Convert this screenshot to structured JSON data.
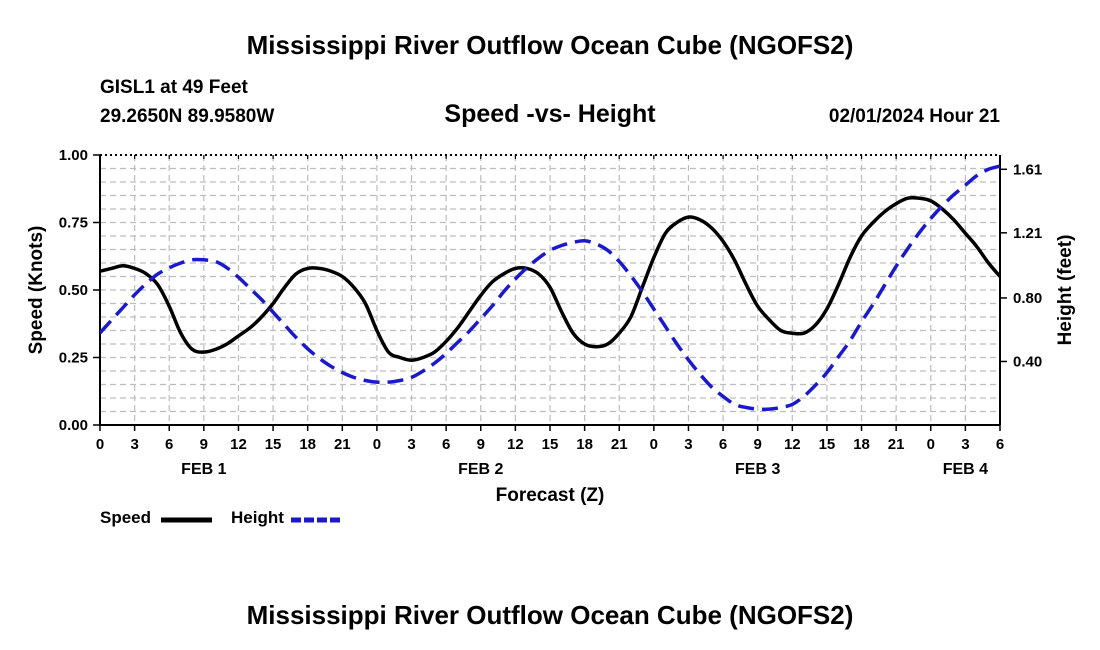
{
  "header": {
    "title": "Mississippi River Outflow Ocean Cube (NGOFS2)",
    "station": "GISL1 at 49 Feet",
    "coords": "29.2650N  89.9580W",
    "subtitle": "Speed -vs- Height",
    "datetime": "02/01/2024 Hour 21",
    "footer_title": "Mississippi River Outflow Ocean Cube (NGOFS2)"
  },
  "colors": {
    "speed": "#000000",
    "height": "#1a1acc",
    "grid": "#bdbdbd"
  },
  "chart_data": {
    "type": "line",
    "xlabel": "Forecast (Z)",
    "ylabel": "Speed (Knots)",
    "y2label": "Height (feet)",
    "x_hours_range": [
      0,
      78
    ],
    "xtick_labels": [
      "0",
      "3",
      "6",
      "9",
      "12",
      "15",
      "18",
      "21",
      "0",
      "3",
      "6",
      "9",
      "12",
      "15",
      "18",
      "21",
      "0",
      "3",
      "6",
      "9",
      "12",
      "15",
      "18",
      "21",
      "0",
      "3",
      "6"
    ],
    "date_labels": [
      {
        "label": "FEB 1",
        "hour": 9
      },
      {
        "label": "FEB 2",
        "hour": 33
      },
      {
        "label": "FEB 3",
        "hour": 57
      },
      {
        "label": "FEB 4",
        "hour": 75
      }
    ],
    "ylim": [
      0,
      1.0
    ],
    "yticks": [
      "0.00",
      "0.25",
      "0.50",
      "0.75",
      "1.00"
    ],
    "y2lim": [
      0.0,
      1.7
    ],
    "y2ticks": [
      "0.40",
      "0.80",
      "1.21",
      "1.61"
    ],
    "series": [
      {
        "name": "Speed",
        "axis": "left",
        "x": [
          0,
          1,
          2,
          3,
          4,
          5,
          6,
          7,
          8,
          9,
          10,
          11,
          12,
          13,
          14,
          15,
          16,
          17,
          18,
          19,
          20,
          21,
          22,
          23,
          24,
          25,
          26,
          27,
          28,
          29,
          30,
          31,
          32,
          33,
          34,
          35,
          36,
          37,
          38,
          39,
          40,
          41,
          42,
          43,
          44,
          45,
          46,
          47,
          48,
          49,
          50,
          51,
          52,
          53,
          54,
          55,
          56,
          57,
          58,
          59,
          60,
          61,
          62,
          63,
          64,
          65,
          66,
          67,
          68,
          69,
          70,
          71,
          72,
          73,
          74,
          75,
          76,
          77,
          78
        ],
        "values": [
          0.57,
          0.58,
          0.59,
          0.58,
          0.56,
          0.52,
          0.44,
          0.34,
          0.28,
          0.27,
          0.28,
          0.3,
          0.33,
          0.36,
          0.4,
          0.45,
          0.51,
          0.56,
          0.58,
          0.58,
          0.57,
          0.55,
          0.51,
          0.45,
          0.35,
          0.27,
          0.25,
          0.24,
          0.25,
          0.27,
          0.31,
          0.36,
          0.42,
          0.48,
          0.53,
          0.56,
          0.58,
          0.58,
          0.56,
          0.51,
          0.42,
          0.34,
          0.3,
          0.29,
          0.3,
          0.34,
          0.4,
          0.51,
          0.62,
          0.71,
          0.75,
          0.77,
          0.76,
          0.73,
          0.68,
          0.61,
          0.52,
          0.44,
          0.39,
          0.35,
          0.34,
          0.34,
          0.37,
          0.43,
          0.52,
          0.62,
          0.7,
          0.75,
          0.79,
          0.82,
          0.84,
          0.84,
          0.83,
          0.8,
          0.76,
          0.71,
          0.66,
          0.6,
          0.55
        ]
      },
      {
        "name": "Height",
        "axis": "right",
        "x": [
          0,
          1,
          2,
          3,
          4,
          5,
          6,
          7,
          8,
          9,
          10,
          11,
          12,
          13,
          14,
          15,
          16,
          17,
          18,
          19,
          20,
          21,
          22,
          23,
          24,
          25,
          26,
          27,
          28,
          29,
          30,
          31,
          32,
          33,
          34,
          35,
          36,
          37,
          38,
          39,
          40,
          41,
          42,
          43,
          44,
          45,
          46,
          47,
          48,
          49,
          50,
          51,
          52,
          53,
          54,
          55,
          56,
          57,
          58,
          59,
          60,
          61,
          62,
          63,
          64,
          65,
          66,
          67,
          68,
          69,
          70,
          71,
          72,
          73,
          74,
          75,
          76,
          77,
          78
        ],
        "values": [
          0.58,
          0.66,
          0.74,
          0.82,
          0.89,
          0.95,
          0.99,
          1.02,
          1.04,
          1.04,
          1.03,
          0.99,
          0.93,
          0.86,
          0.79,
          0.71,
          0.63,
          0.55,
          0.48,
          0.42,
          0.37,
          0.33,
          0.3,
          0.28,
          0.27,
          0.27,
          0.28,
          0.3,
          0.34,
          0.39,
          0.45,
          0.52,
          0.59,
          0.67,
          0.75,
          0.84,
          0.92,
          0.99,
          1.05,
          1.1,
          1.13,
          1.15,
          1.16,
          1.14,
          1.1,
          1.03,
          0.94,
          0.84,
          0.73,
          0.62,
          0.51,
          0.41,
          0.32,
          0.24,
          0.18,
          0.13,
          0.11,
          0.1,
          0.1,
          0.11,
          0.13,
          0.18,
          0.25,
          0.33,
          0.43,
          0.53,
          0.65,
          0.76,
          0.88,
          1.0,
          1.11,
          1.21,
          1.3,
          1.38,
          1.45,
          1.51,
          1.57,
          1.61,
          1.63
        ]
      }
    ]
  }
}
